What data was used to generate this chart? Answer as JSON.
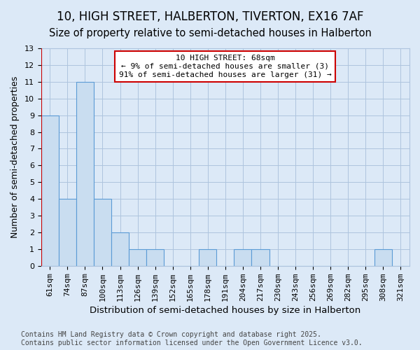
{
  "title1": "10, HIGH STREET, HALBERTON, TIVERTON, EX16 7AF",
  "title2": "Size of property relative to semi-detached houses in Halberton",
  "xlabel": "Distribution of semi-detached houses by size in Halberton",
  "ylabel": "Number of semi-detached properties",
  "categories": [
    "61sqm",
    "74sqm",
    "87sqm",
    "100sqm",
    "113sqm",
    "126sqm",
    "139sqm",
    "152sqm",
    "165sqm",
    "178sqm",
    "191sqm",
    "204sqm",
    "217sqm",
    "230sqm",
    "243sqm",
    "256sqm",
    "269sqm",
    "282sqm",
    "295sqm",
    "308sqm",
    "321sqm"
  ],
  "values": [
    9,
    4,
    11,
    4,
    2,
    1,
    1,
    0,
    0,
    1,
    0,
    1,
    1,
    0,
    0,
    0,
    0,
    0,
    0,
    1,
    0
  ],
  "bar_color": "#c9ddf0",
  "bar_edge_color": "#5b9bd5",
  "annotation_title": "10 HIGH STREET: 68sqm",
  "annotation_line1": "← 9% of semi-detached houses are smaller (3)",
  "annotation_line2": "91% of semi-detached houses are larger (31) →",
  "annotation_box_color": "#ffffff",
  "annotation_box_edge": "#cc0000",
  "vline_color": "#cc0000",
  "vline_x_index": 0,
  "ylim": [
    0,
    13
  ],
  "yticks": [
    0,
    1,
    2,
    3,
    4,
    5,
    6,
    7,
    8,
    9,
    10,
    11,
    12,
    13
  ],
  "background_color": "#dce9f7",
  "plot_bg_color": "#dce9f7",
  "grid_color": "#aec4de",
  "footer": "Contains HM Land Registry data © Crown copyright and database right 2025.\nContains public sector information licensed under the Open Government Licence v3.0.",
  "title1_fontsize": 12,
  "title2_fontsize": 10.5,
  "xlabel_fontsize": 9.5,
  "ylabel_fontsize": 9,
  "tick_fontsize": 8,
  "ann_fontsize": 8,
  "footer_fontsize": 7
}
